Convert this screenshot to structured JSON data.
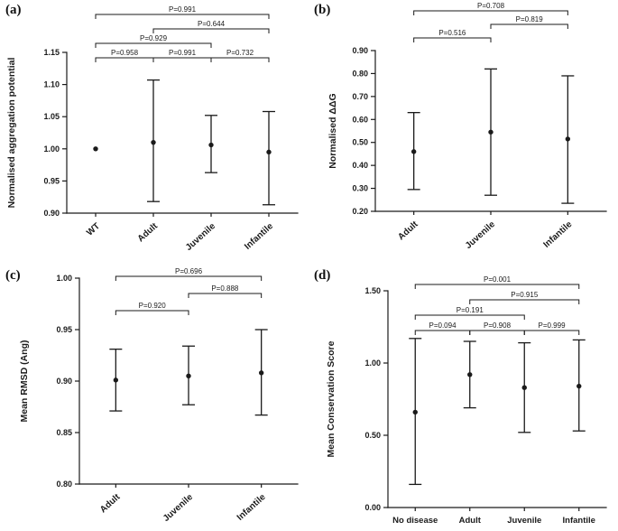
{
  "figure": {
    "background": "#ffffff",
    "ink_color": "#1a1a1a"
  },
  "chart_data": [
    {
      "panel_label": "(a)",
      "type": "scatter",
      "marker": "mean-point-with-95ci-error-bars",
      "ylabel": "Normalised aggregation potential",
      "ylim": [
        0.9,
        1.15
      ],
      "yticks": [
        "0.90",
        "0.95",
        "1.00",
        "1.05",
        "1.10",
        "1.15"
      ],
      "categories": [
        "WT",
        "Adult",
        "Juvenile",
        "Infantile"
      ],
      "means": [
        1.0,
        1.01,
        1.006,
        0.995
      ],
      "ci_low": [
        1.0,
        0.918,
        0.963,
        0.913
      ],
      "ci_high": [
        1.0,
        1.107,
        1.052,
        1.058
      ],
      "grid": false,
      "comparisons": [
        {
          "a": 0,
          "b": 1,
          "label": "P=0.958",
          "level": 1
        },
        {
          "a": 1,
          "b": 2,
          "label": "P=0.991",
          "level": 1
        },
        {
          "a": 2,
          "b": 3,
          "label": "P=0.732",
          "level": 1
        },
        {
          "a": 0,
          "b": 2,
          "label": "P=0.929",
          "level": 2
        },
        {
          "a": 1,
          "b": 3,
          "label": "P=0.644",
          "level": 3
        },
        {
          "a": 0,
          "b": 3,
          "label": "P=0.991",
          "level": 4
        }
      ]
    },
    {
      "panel_label": "(b)",
      "type": "scatter",
      "marker": "mean-point-with-95ci-error-bars",
      "ylabel": "Normalised ΔΔG",
      "ylim": [
        0.2,
        0.9
      ],
      "yticks": [
        "0.20",
        "0.30",
        "0.40",
        "0.50",
        "0.60",
        "0.70",
        "0.80",
        "0.90"
      ],
      "categories": [
        "Adult",
        "Juvenile",
        "Infantile"
      ],
      "means": [
        0.46,
        0.545,
        0.515
      ],
      "ci_low": [
        0.295,
        0.27,
        0.235
      ],
      "ci_high": [
        0.63,
        0.82,
        0.79
      ],
      "grid": false,
      "comparisons": [
        {
          "a": 0,
          "b": 1,
          "label": "P=0.516",
          "level": 1
        },
        {
          "a": 1,
          "b": 2,
          "label": "P=0.819",
          "level": 2
        },
        {
          "a": 0,
          "b": 2,
          "label": "P=0.708",
          "level": 3
        }
      ]
    },
    {
      "panel_label": "(c)",
      "type": "scatter",
      "marker": "mean-point-with-95ci-error-bars",
      "ylabel": "Mean RMSD (Ang)",
      "ylim": [
        0.8,
        1.0
      ],
      "yticks": [
        "0.80",
        "0.85",
        "0.90",
        "0.95",
        "1.00"
      ],
      "categories": [
        "Adult",
        "Juvenile",
        "Infantile"
      ],
      "means": [
        0.901,
        0.905,
        0.908
      ],
      "ci_low": [
        0.871,
        0.877,
        0.867
      ],
      "ci_high": [
        0.931,
        0.934,
        0.95
      ],
      "grid": false,
      "comparisons": [
        {
          "a": 0,
          "b": 1,
          "label": "P=0.920",
          "level": 1
        },
        {
          "a": 1,
          "b": 2,
          "label": "P=0.888",
          "level": 2
        },
        {
          "a": 0,
          "b": 2,
          "label": "P=0.696",
          "level": 3
        }
      ]
    },
    {
      "panel_label": "(d)",
      "type": "scatter",
      "marker": "mean-point-with-95ci-error-bars",
      "ylabel": "Mean Conservation Score",
      "ylim": [
        0.0,
        1.5
      ],
      "yticks": [
        "0.00",
        "0.50",
        "1.00",
        "1.50"
      ],
      "categories": [
        "No disease",
        "Adult",
        "Juvenile",
        "Infantile"
      ],
      "means": [
        0.66,
        0.92,
        0.83,
        0.84
      ],
      "ci_low": [
        0.16,
        0.69,
        0.52,
        0.53
      ],
      "ci_high": [
        1.17,
        1.15,
        1.14,
        1.16
      ],
      "grid": false,
      "comparisons": [
        {
          "a": 0,
          "b": 1,
          "label": "P=0.094",
          "level": 1
        },
        {
          "a": 1,
          "b": 2,
          "label": "P=0.908",
          "level": 1
        },
        {
          "a": 2,
          "b": 3,
          "label": "P=0.999",
          "level": 1
        },
        {
          "a": 0,
          "b": 2,
          "label": "P=0.191",
          "level": 2
        },
        {
          "a": 1,
          "b": 3,
          "label": "P=0.915",
          "level": 3
        },
        {
          "a": 0,
          "b": 3,
          "label": "P=0.001",
          "level": 4
        }
      ]
    }
  ]
}
